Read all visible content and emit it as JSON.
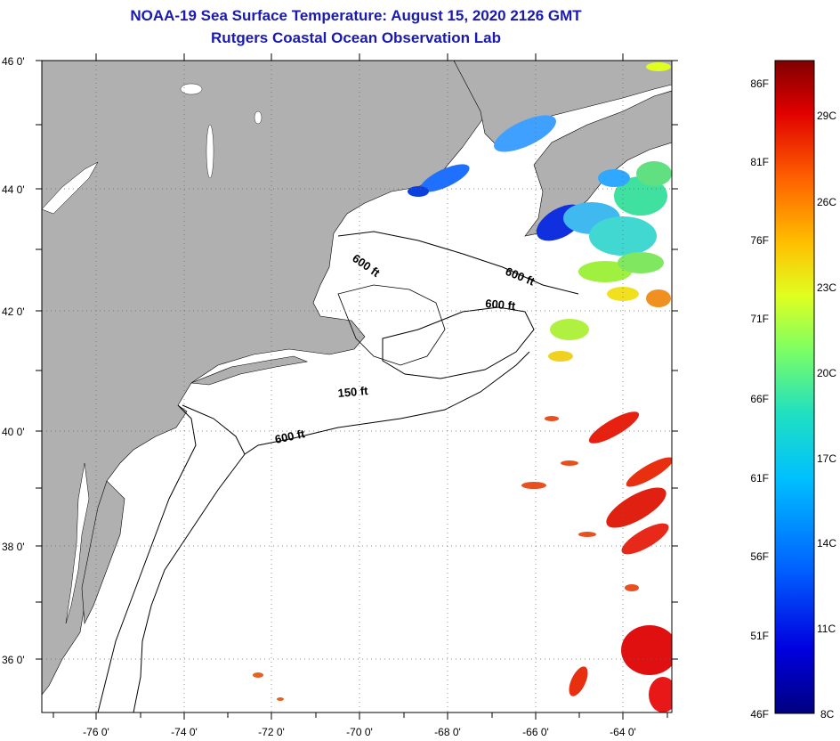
{
  "title": {
    "line1": "NOAA-19 Sea Surface Temperature:  August 15, 2020 2126 GMT",
    "line2": "Rutgers Coastal Ocean Observation Lab"
  },
  "axes": {
    "lat_labels": [
      "46 0'",
      "44 0'",
      "42 0'",
      "40 0'",
      "38 0'",
      "36 0'"
    ],
    "lon_labels": [
      "-76 0'",
      "-74 0'",
      "-72 0'",
      "-70 0'",
      "-68 0'",
      "-66 0'",
      "-64 0'"
    ],
    "lat_range": [
      35,
      46
    ],
    "lon_range": [
      -77,
      -63
    ]
  },
  "contours": {
    "label_150": "150 ft",
    "label_600": "600 ft"
  },
  "colorbar": {
    "fahrenheit_labels": [
      "86F",
      "81F",
      "76F",
      "71F",
      "66F",
      "61F",
      "56F",
      "51F",
      "46F"
    ],
    "celsius_labels": [
      "29C",
      "26C",
      "23C",
      "20C",
      "17C",
      "14C",
      "11C",
      "8C"
    ],
    "range_c": [
      8,
      31
    ]
  },
  "colors": {
    "land": "#b0b0b0",
    "title": "#1a1ab0",
    "water": "#ffffff"
  }
}
